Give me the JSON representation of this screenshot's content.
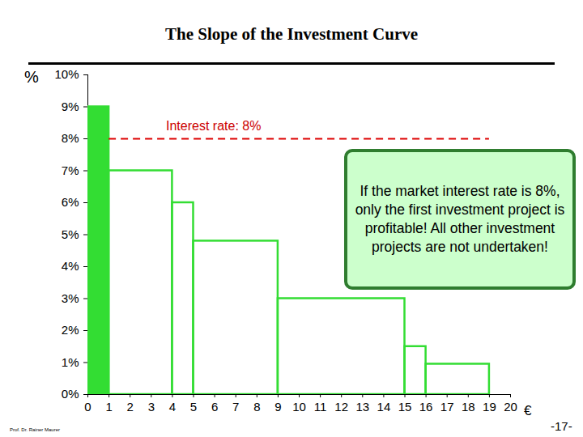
{
  "chart_data": {
    "type": "bar",
    "title": "The Slope of the Investment Curve",
    "x_label": "€",
    "y_label": "%",
    "bins": [
      0,
      1,
      4,
      5,
      9,
      15,
      16,
      19
    ],
    "values": [
      9,
      7,
      6,
      4.8,
      3,
      1.5,
      0.95
    ],
    "color": "#33dd33",
    "xlim": [
      0,
      20
    ],
    "xticks": [
      0,
      1,
      2,
      3,
      4,
      5,
      6,
      7,
      8,
      9,
      10,
      11,
      12,
      13,
      14,
      15,
      16,
      17,
      18,
      19,
      20
    ],
    "ylim": [
      0,
      10
    ],
    "yticks": [
      {
        "value": 0,
        "label": "0%"
      },
      {
        "value": 1,
        "label": "1%"
      },
      {
        "value": 2,
        "label": "2%"
      },
      {
        "value": 3,
        "label": "3%"
      },
      {
        "value": 4,
        "label": "4%"
      },
      {
        "value": 5,
        "label": "5%"
      },
      {
        "value": 6,
        "label": "6%"
      },
      {
        "value": 7,
        "label": "7%"
      },
      {
        "value": 8,
        "label": "8%"
      },
      {
        "value": 9,
        "label": "9%"
      },
      {
        "value": 10,
        "label": "10%"
      }
    ],
    "interest_rate": 8,
    "interest_rate_label": "Interest rate: 8%",
    "annotation": "If the market interest rate is 8%, only the first investment project is profitable! All other investment projects are not undertaken!",
    "footer": "Prof. Dr. Rainer Maurer",
    "page": "-17-"
  }
}
